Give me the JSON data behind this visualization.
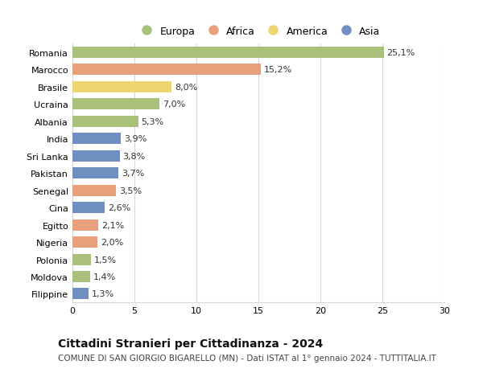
{
  "countries": [
    "Romania",
    "Marocco",
    "Brasile",
    "Ucraina",
    "Albania",
    "India",
    "Sri Lanka",
    "Pakistan",
    "Senegal",
    "Cina",
    "Egitto",
    "Nigeria",
    "Polonia",
    "Moldova",
    "Filippine"
  ],
  "values": [
    25.1,
    15.2,
    8.0,
    7.0,
    5.3,
    3.9,
    3.8,
    3.7,
    3.5,
    2.6,
    2.1,
    2.0,
    1.5,
    1.4,
    1.3
  ],
  "labels": [
    "25,1%",
    "15,2%",
    "8,0%",
    "7,0%",
    "5,3%",
    "3,9%",
    "3,8%",
    "3,7%",
    "3,5%",
    "2,6%",
    "2,1%",
    "2,0%",
    "1,5%",
    "1,4%",
    "1,3%"
  ],
  "continents": [
    "Europa",
    "Africa",
    "America",
    "Europa",
    "Europa",
    "Asia",
    "Asia",
    "Asia",
    "Africa",
    "Asia",
    "Africa",
    "Africa",
    "Europa",
    "Europa",
    "Asia"
  ],
  "colors": {
    "Europa": "#a8c07a",
    "Africa": "#e8a07a",
    "America": "#f0d470",
    "Asia": "#6e8fc0"
  },
  "title": "Cittadini Stranieri per Cittadinanza - 2024",
  "subtitle": "COMUNE DI SAN GIORGIO BIGARELLO (MN) - Dati ISTAT al 1° gennaio 2024 - TUTTITALIA.IT",
  "xlim": [
    0,
    30
  ],
  "xticks": [
    0,
    5,
    10,
    15,
    20,
    25,
    30
  ],
  "background_color": "#ffffff",
  "bar_height": 0.65,
  "grid_color": "#d8d8d8",
  "label_fontsize": 8,
  "title_fontsize": 10,
  "subtitle_fontsize": 7.5,
  "tick_fontsize": 8,
  "legend_fontsize": 9,
  "legend_order": [
    "Europa",
    "Africa",
    "America",
    "Asia"
  ]
}
